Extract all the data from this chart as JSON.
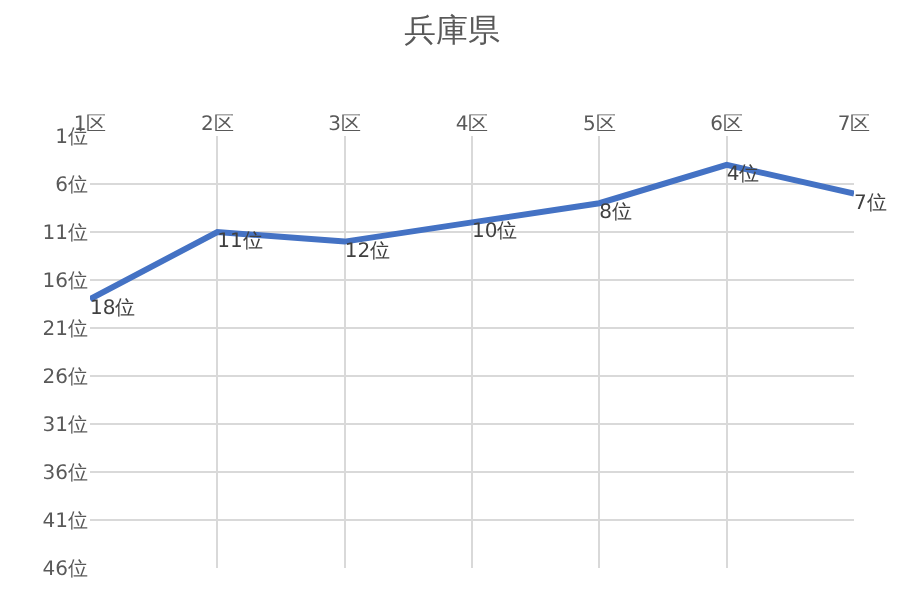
{
  "chart_data": {
    "type": "line",
    "title": "兵庫県",
    "categories": [
      "1区",
      "2区",
      "3区",
      "4区",
      "5区",
      "6区",
      "7区"
    ],
    "series": [
      {
        "color": "#4472c4",
        "values": [
          18,
          11,
          12,
          10,
          8,
          4,
          7
        ],
        "value_labels": [
          "18位",
          "11位",
          "12位",
          "10位",
          "8位",
          "4位",
          "7位"
        ]
      }
    ],
    "ylim": [
      46,
      1
    ],
    "yticks": [
      {
        "value": 1,
        "label": "1位"
      },
      {
        "value": 6,
        "label": "6位"
      },
      {
        "value": 11,
        "label": "11位"
      },
      {
        "value": 16,
        "label": "16位"
      },
      {
        "value": 21,
        "label": "21位"
      },
      {
        "value": 26,
        "label": "26位"
      },
      {
        "value": 31,
        "label": "31位"
      },
      {
        "value": 36,
        "label": "36位"
      },
      {
        "value": 41,
        "label": "41位"
      },
      {
        "value": 46,
        "label": "46位"
      }
    ],
    "grid": true,
    "marker": "none",
    "line_style": "solid"
  }
}
